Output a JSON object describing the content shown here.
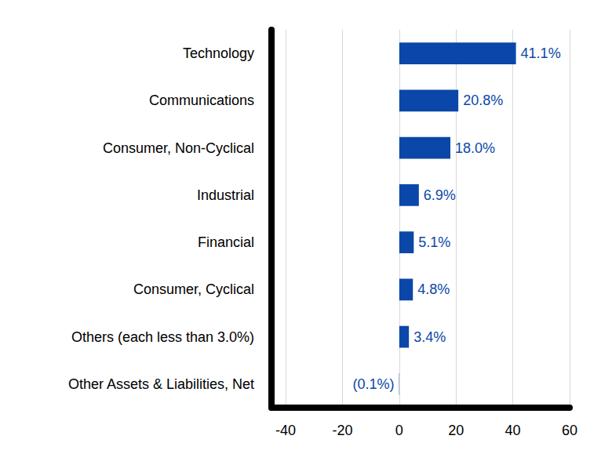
{
  "chart_data": {
    "type": "bar",
    "orientation": "horizontal",
    "categories": [
      "Technology",
      "Communications",
      "Consumer, Non-Cyclical",
      "Industrial",
      "Financial",
      "Consumer, Cyclical",
      "Others (each less than 3.0%)",
      "Other Assets & Liabilities, Net"
    ],
    "values": [
      41.1,
      20.8,
      18.0,
      6.9,
      5.1,
      4.8,
      3.4,
      -0.1
    ],
    "value_labels": [
      "41.1%",
      "20.8%",
      "18.0%",
      "6.9%",
      "5.1%",
      "4.8%",
      "3.4%",
      "(0.1%)"
    ],
    "color": "#0b47a8",
    "xlim": [
      -45,
      60
    ],
    "xticks": [
      -40,
      -20,
      0,
      20,
      40,
      60
    ],
    "grid": true,
    "data_labels": true
  }
}
